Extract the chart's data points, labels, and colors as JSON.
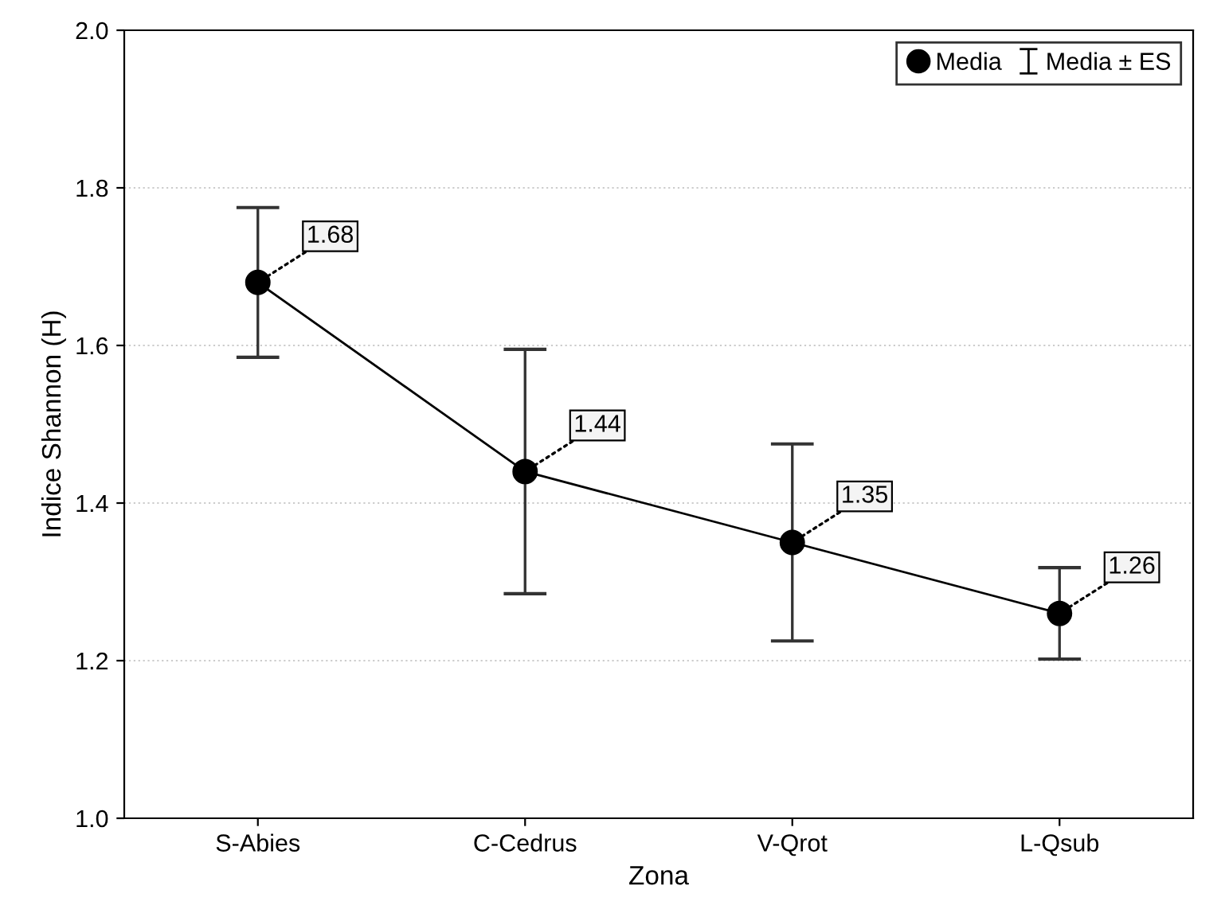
{
  "chart_data": {
    "type": "line",
    "xlabel": "Zona",
    "ylabel": "Indice Shannon (H)",
    "categories": [
      "S-Abies",
      "C-Cedrus",
      "V-Qrot",
      "L-Qsub"
    ],
    "series": [
      {
        "name": "Media",
        "color": "#000000",
        "values": [
          1.68,
          1.44,
          1.35,
          1.26
        ],
        "errors": [
          0.095,
          0.155,
          0.125,
          0.058
        ]
      }
    ],
    "annotations": [
      "Media ± ES"
    ],
    "ylim": [
      1.0,
      2.0
    ],
    "yticks": [
      {
        "value": 1.0,
        "label": "1.0"
      },
      {
        "value": 1.2,
        "label": "1.2"
      },
      {
        "value": 1.4,
        "label": "1.4"
      },
      {
        "value": 1.6,
        "label": "1.6"
      },
      {
        "value": 1.8,
        "label": "1.8"
      },
      {
        "value": 2.0,
        "label": "2.0"
      }
    ],
    "grid": "y",
    "legend": "top right",
    "marker": "circle",
    "line_style": "solid",
    "data_labels": true
  }
}
